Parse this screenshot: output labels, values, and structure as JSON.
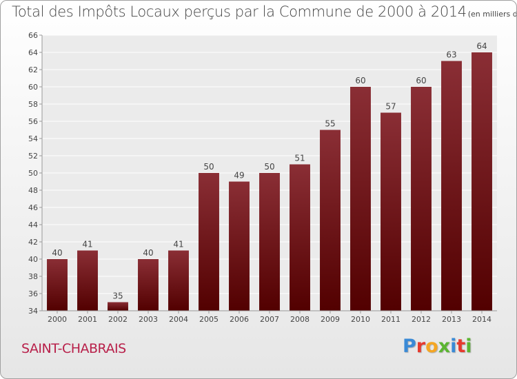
{
  "header": {
    "title": "Total des Impôts Locaux perçus par la Commune de 2000 à 2014",
    "unit": "(en milliers d'€)"
  },
  "footer": {
    "commune": "SAINT-CHABRAIS",
    "logo": {
      "letters": [
        "P",
        "r",
        "o",
        "x",
        "i",
        "t",
        "i"
      ],
      "colors": [
        "#3a8ad6",
        "#e63a2e",
        "#f5a623",
        "#5bb531",
        "#3a8ad6",
        "#e63a2e",
        "#5bb531"
      ]
    }
  },
  "chart_data": {
    "type": "bar",
    "categories": [
      "2000",
      "2001",
      "2002",
      "2003",
      "2004",
      "2005",
      "2006",
      "2007",
      "2008",
      "2009",
      "2010",
      "2011",
      "2012",
      "2013",
      "2014"
    ],
    "values": [
      40,
      41,
      35,
      40,
      41,
      50,
      49,
      50,
      51,
      55,
      60,
      57,
      60,
      63,
      64
    ],
    "ylim": [
      34,
      66
    ],
    "yticks": [
      34,
      36,
      38,
      40,
      42,
      44,
      46,
      48,
      50,
      52,
      54,
      56,
      58,
      60,
      62,
      64,
      66
    ],
    "grid": true,
    "bar_color_top": "#8a2e35",
    "bar_color_bottom": "#520000"
  }
}
